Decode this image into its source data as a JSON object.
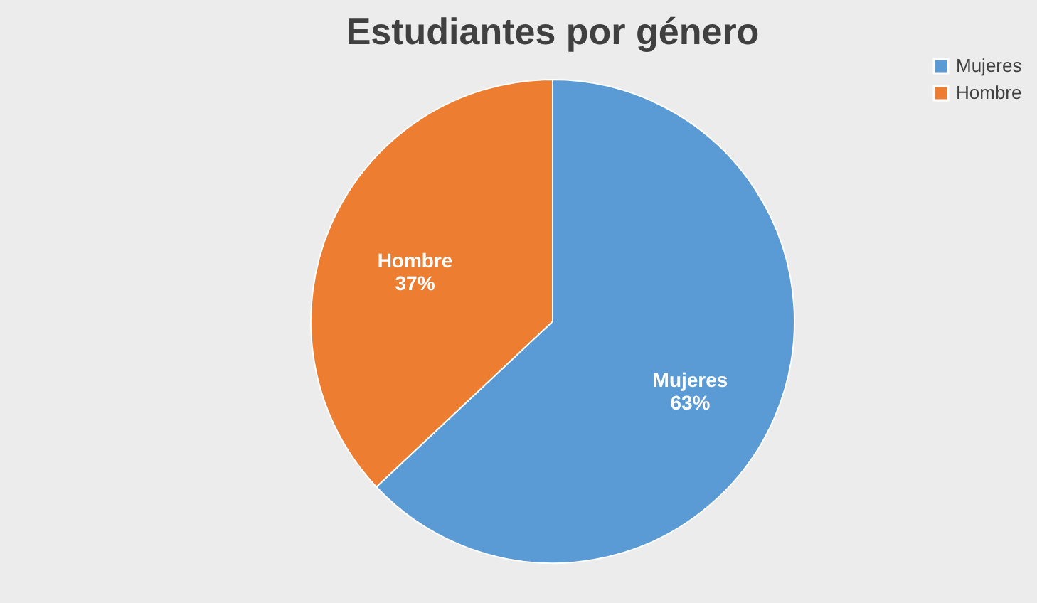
{
  "chart_data": {
    "type": "pie",
    "title": "Estudiantes por género",
    "categories": [
      "Mujeres",
      "Hombre"
    ],
    "values": [
      63,
      37
    ],
    "value_labels": [
      "63%",
      "37%"
    ],
    "colors": [
      "#5b9bd5",
      "#ed7d31"
    ],
    "legend": "right"
  }
}
